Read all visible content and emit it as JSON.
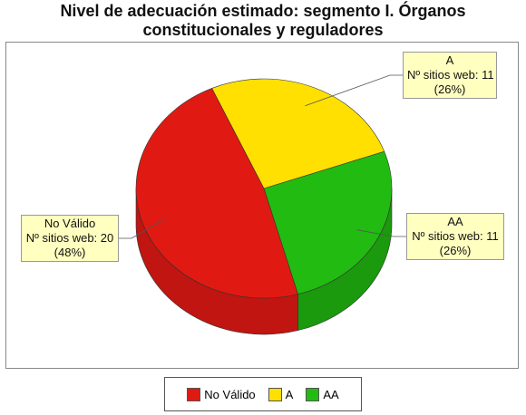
{
  "chart_data": {
    "type": "pie",
    "title_lines": [
      "Nivel de adecuación estimado: segmento I. Órganos",
      "constitucionales y reguladores"
    ],
    "slices": [
      {
        "label": "A",
        "value": 11,
        "percent": "26%",
        "color": "#ffe000",
        "side_color": "#c8b000"
      },
      {
        "label": "AA",
        "value": 11,
        "percent": "26%",
        "color": "#22bb11",
        "side_color": "#1a9a0c"
      },
      {
        "label": "No Válido",
        "value": 20,
        "percent": "48%",
        "color": "#e01a12",
        "side_color": "#c01510"
      }
    ],
    "count_prefix": "Nº sitios web:",
    "legend": [
      "No Válido",
      "A",
      "AA"
    ],
    "legend_position": "bottom"
  }
}
